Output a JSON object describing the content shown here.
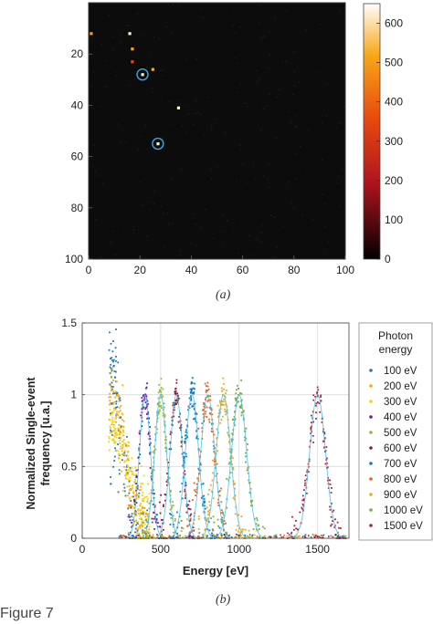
{
  "figure_label": "Figure 7",
  "panel_a": {
    "caption": "(a)",
    "x_ticks": [
      "0",
      "20",
      "40",
      "60",
      "80",
      "100"
    ],
    "y_ticks": [
      "20",
      "40",
      "60",
      "80",
      "100"
    ],
    "colorbar_ticks": [
      "0",
      "100",
      "200",
      "300",
      "400",
      "500",
      "600"
    ]
  },
  "panel_b": {
    "caption": "(b)",
    "ylabel_line1": "Normalized Single-event",
    "ylabel_line2": "frequency [u.a.]",
    "xlabel": "Energy [eV]",
    "x_ticks": [
      "0",
      "500",
      "1000",
      "1500"
    ],
    "y_ticks": [
      "0",
      "0.5",
      "1",
      "1.5"
    ],
    "legend_title_line1": "Photon",
    "legend_title_line2": "energy"
  },
  "chart_data": [
    {
      "type": "heatmap",
      "title": "",
      "xlabel": "",
      "ylabel": "",
      "xlim": [
        0,
        100
      ],
      "ylim": [
        100,
        0
      ],
      "colorbar": {
        "min": 0,
        "max": 650,
        "colormap": "hot",
        "ticks": [
          0,
          100,
          200,
          300,
          400,
          500,
          600
        ]
      },
      "bright_pixels": [
        {
          "x": 1,
          "y": 12,
          "value": 420
        },
        {
          "x": 16,
          "y": 12,
          "value": 620
        },
        {
          "x": 17,
          "y": 18,
          "value": 380
        },
        {
          "x": 17,
          "y": 23,
          "value": 330
        },
        {
          "x": 21,
          "y": 28,
          "value": 650
        },
        {
          "x": 25,
          "y": 26,
          "value": 480
        },
        {
          "x": 35,
          "y": 41,
          "value": 520
        },
        {
          "x": 27,
          "y": 55,
          "value": 650
        }
      ],
      "circled_pixels": [
        {
          "x": 21,
          "y": 28
        },
        {
          "x": 27,
          "y": 55
        }
      ]
    },
    {
      "type": "scatter",
      "title": "",
      "xlabel": "Energy [eV]",
      "ylabel": "Normalized Single-event frequency [u.a.]",
      "xlim": [
        0,
        1700
      ],
      "ylim": [
        0,
        1.5
      ],
      "grid": true,
      "legend_placement": "right",
      "series": [
        {
          "name": "100 eV",
          "color": "#1f77b4",
          "peak": 230,
          "width": 40
        },
        {
          "name": "200 eV",
          "color": "#ffa500",
          "peak": 230,
          "width": 55
        },
        {
          "name": "300 eV",
          "color": "#ffd000",
          "peak": 300,
          "width": 45
        },
        {
          "name": "400 eV",
          "color": "#6a1b9a",
          "peak": 400,
          "width": 35
        },
        {
          "name": "500 eV",
          "color": "#8fbc3f",
          "peak": 500,
          "width": 38
        },
        {
          "name": "600 eV",
          "color": "#8b1a3a",
          "peak": 600,
          "width": 40
        },
        {
          "name": "700 eV",
          "color": "#0f7bbf",
          "peak": 700,
          "width": 42
        },
        {
          "name": "800 eV",
          "color": "#e06020",
          "peak": 800,
          "width": 44
        },
        {
          "name": "900 eV",
          "color": "#f0a818",
          "peak": 900,
          "width": 46
        },
        {
          "name": "1000 eV",
          "color": "#77ab43",
          "peak": 1000,
          "width": 48
        },
        {
          "name": "1500 eV",
          "color": "#b0203c",
          "peak": 1500,
          "width": 50
        }
      ]
    }
  ]
}
